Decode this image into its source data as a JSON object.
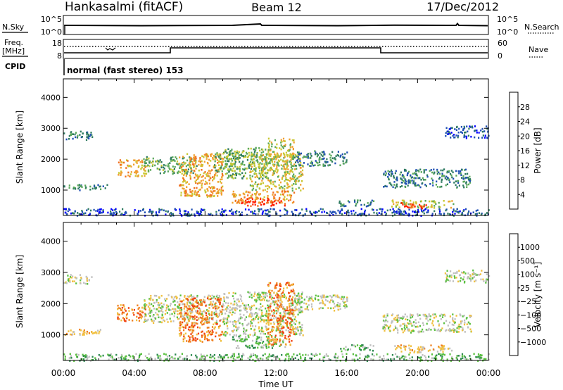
{
  "header": {
    "station": "Hankasalmi (fitACF)",
    "beam": "Beam 12",
    "date": "17/Dec/2012"
  },
  "status_panel": {
    "nsky_label": "N.Sky",
    "nsky_ticks": [
      "10^5",
      "10^0"
    ],
    "nsearch_label": "N.Search",
    "nsearch_ticks": [
      "10^5",
      "10^0"
    ],
    "freq_label": "Freq.",
    "freq_unit": "[MHz]",
    "freq_ticks": [
      "18",
      "8"
    ],
    "nave_label": "Nave",
    "nave_ticks": [
      "60",
      "0"
    ],
    "cpid_label": "CPID",
    "mode_text": "normal (fast stereo) 153"
  },
  "chart_data": [
    {
      "type": "heatmap",
      "title": "",
      "xlabel": "Time UT",
      "ylabel": "Slant Range [km]",
      "x_ticks": [
        "00:00",
        "04:00",
        "08:00",
        "12:00",
        "16:00",
        "20:00",
        "00:00"
      ],
      "y_ticks": [
        1000,
        2000,
        3000,
        4000
      ],
      "xlim_hours": [
        0,
        24
      ],
      "ylim_km": [
        180,
        4600
      ],
      "colorbar": {
        "label": "Power [dB]",
        "ticks": [
          "4",
          "8",
          "12",
          "16",
          "20",
          "24",
          "28"
        ],
        "colors": [
          "#0000ff",
          "#1f4fb4",
          "#2e7a60",
          "#5aa85a",
          "#c8c832",
          "#f0a030",
          "#f07020",
          "#ff2000"
        ]
      },
      "echo_regions": [
        {
          "t": [
            0.0,
            1.6
          ],
          "r": [
            2650,
            2950
          ],
          "level": 2
        },
        {
          "t": [
            0.0,
            2.5
          ],
          "r": [
            1020,
            1200
          ],
          "level": 2
        },
        {
          "t": [
            0.0,
            24.0
          ],
          "r": [
            190,
            420
          ],
          "level": 1
        },
        {
          "t": [
            3.0,
            4.6
          ],
          "r": [
            1450,
            2000
          ],
          "level": 5
        },
        {
          "t": [
            4.5,
            7.5
          ],
          "r": [
            1550,
            2100
          ],
          "level": 3
        },
        {
          "t": [
            6.5,
            9.0
          ],
          "r": [
            800,
            2200
          ],
          "level": 5
        },
        {
          "t": [
            8.5,
            10.0
          ],
          "r": [
            1600,
            2300
          ],
          "level": 3
        },
        {
          "t": [
            9.0,
            11.5
          ],
          "r": [
            1400,
            2400
          ],
          "level": 3
        },
        {
          "t": [
            10.5,
            13.5
          ],
          "r": [
            1000,
            2200
          ],
          "level": 4
        },
        {
          "t": [
            9.5,
            13.0
          ],
          "r": [
            600,
            1000
          ],
          "level": 5
        },
        {
          "t": [
            10.0,
            12.5
          ],
          "r": [
            500,
            750
          ],
          "level": 7
        },
        {
          "t": [
            11.5,
            13.0
          ],
          "r": [
            1600,
            2700
          ],
          "level": 4
        },
        {
          "t": [
            13.0,
            16.0
          ],
          "r": [
            1800,
            2300
          ],
          "level": 2
        },
        {
          "t": [
            15.5,
            17.5
          ],
          "r": [
            500,
            700
          ],
          "level": 2
        },
        {
          "t": [
            18.0,
            23.0
          ],
          "r": [
            1100,
            1700
          ],
          "level": 2
        },
        {
          "t": [
            18.5,
            22.0
          ],
          "r": [
            450,
            700
          ],
          "level": 4
        },
        {
          "t": [
            19.0,
            20.5
          ],
          "r": [
            430,
            620
          ],
          "level": 7
        },
        {
          "t": [
            21.5,
            24.0
          ],
          "r": [
            2700,
            3100
          ],
          "level": 1
        }
      ]
    },
    {
      "type": "heatmap",
      "title": "",
      "xlabel": "Time UT",
      "ylabel": "Slant Range [km]",
      "x_ticks": [
        "00:00",
        "04:00",
        "08:00",
        "12:00",
        "16:00",
        "20:00",
        "00:00"
      ],
      "y_ticks": [
        1000,
        2000,
        3000,
        4000
      ],
      "xlim_hours": [
        0,
        24
      ],
      "ylim_km": [
        180,
        4600
      ],
      "colorbar": {
        "label": "Velocity [m s⁻¹]",
        "ticks": [
          "1000",
          "500",
          "100",
          "25",
          "−25",
          "−100",
          "−500",
          "−1000"
        ],
        "colors": [
          "#1040c0",
          "#2f6ab0",
          "#2e8a50",
          "#5ac040",
          "#c0c0c0",
          "#f0c040",
          "#f08020",
          "#f04010",
          "#ff0000"
        ]
      },
      "echo_regions": [
        {
          "t": [
            0.0,
            1.6
          ],
          "r": [
            2650,
            2950
          ],
          "level": 4
        },
        {
          "t": [
            0.0,
            2.5
          ],
          "r": [
            1020,
            1200
          ],
          "level": 5
        },
        {
          "t": [
            0.0,
            24.0
          ],
          "r": [
            190,
            420
          ],
          "level": 3
        },
        {
          "t": [
            3.0,
            4.6
          ],
          "r": [
            1450,
            2000
          ],
          "level": 6
        },
        {
          "t": [
            4.5,
            9.0
          ],
          "r": [
            1400,
            2300
          ],
          "level": 4
        },
        {
          "t": [
            6.5,
            9.0
          ],
          "r": [
            800,
            2200
          ],
          "level": 6
        },
        {
          "t": [
            9.0,
            13.5
          ],
          "r": [
            1000,
            2400
          ],
          "level": 4
        },
        {
          "t": [
            9.5,
            12.5
          ],
          "r": [
            600,
            1000
          ],
          "level": 3
        },
        {
          "t": [
            11.5,
            13.0
          ],
          "r": [
            700,
            2700
          ],
          "level": 6
        },
        {
          "t": [
            13.0,
            16.0
          ],
          "r": [
            1800,
            2300
          ],
          "level": 4
        },
        {
          "t": [
            15.5,
            17.5
          ],
          "r": [
            500,
            700
          ],
          "level": 3
        },
        {
          "t": [
            18.0,
            23.0
          ],
          "r": [
            1100,
            1700
          ],
          "level": 4
        },
        {
          "t": [
            18.5,
            22.0
          ],
          "r": [
            450,
            700
          ],
          "level": 5
        },
        {
          "t": [
            21.5,
            24.0
          ],
          "r": [
            2700,
            3100
          ],
          "level": 4
        }
      ]
    }
  ]
}
